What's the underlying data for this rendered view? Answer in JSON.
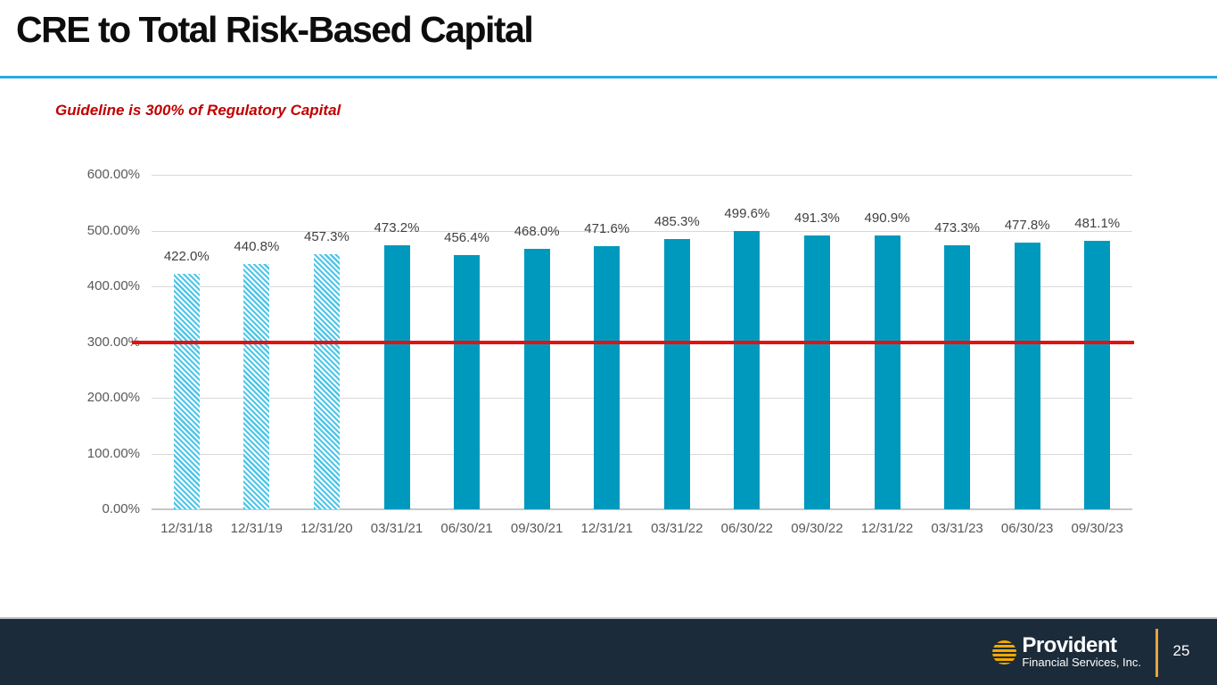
{
  "slide": {
    "title": "CRE to Total Risk-Based Capital",
    "subtitle": "Guideline is 300% of Regulatory Capital"
  },
  "footer": {
    "logo_name": "Provident",
    "logo_subtext": "Financial Services, Inc.",
    "page_number": "25"
  },
  "colors": {
    "bar_solid": "#0099BE",
    "bar_hatch_stripe": "#4EC6E8",
    "guideline_red": "#E01212",
    "subtitle_red": "#C00000",
    "title_rule_cyan": "#29ABE2",
    "footer_navy": "#1B2B3A",
    "logo_orange": "#F2A900",
    "tick_gray": "#595959",
    "data_label_gray": "#404040",
    "gridline_gray": "#D9D9D9"
  },
  "chart_data": {
    "type": "bar",
    "title": "",
    "xlabel": "",
    "ylabel": "",
    "grid": true,
    "legend": false,
    "ylim": [
      0,
      600
    ],
    "categories": [
      "12/31/18",
      "12/31/19",
      "12/31/20",
      "03/31/21",
      "06/30/21",
      "09/30/21",
      "12/31/21",
      "03/31/22",
      "06/30/22",
      "09/30/22",
      "12/31/22",
      "03/31/23",
      "06/30/23",
      "09/30/23"
    ],
    "values": [
      422.0,
      440.8,
      457.3,
      473.2,
      456.4,
      468.0,
      471.6,
      485.3,
      499.6,
      491.3,
      490.9,
      473.3,
      477.8,
      481.1
    ],
    "value_labels": [
      "422.0%",
      "440.8%",
      "457.3%",
      "473.2%",
      "456.4%",
      "468.0%",
      "471.6%",
      "485.3%",
      "499.6%",
      "491.3%",
      "490.9%",
      "473.3%",
      "477.8%",
      "481.1%"
    ],
    "hatched_count": 3,
    "y_ticks": [
      0,
      100,
      200,
      300,
      400,
      500,
      600
    ],
    "y_tick_labels": [
      "0.00%",
      "100.00%",
      "200.00%",
      "300.00%",
      "400.00%",
      "500.00%",
      "600.00%"
    ],
    "guideline": {
      "value": 300,
      "label": "Guideline is 300% of Regulatory Capital"
    }
  }
}
